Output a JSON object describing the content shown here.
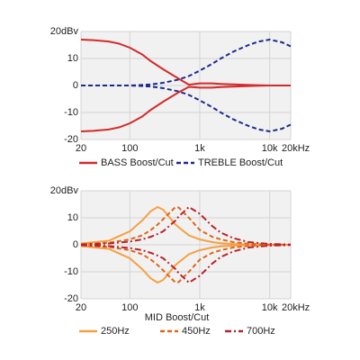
{
  "chart_data": [
    {
      "type": "line",
      "log_x": true,
      "grid": true,
      "x": [
        20,
        30,
        50,
        70,
        100,
        150,
        200,
        300,
        500,
        700,
        1000,
        1500,
        2000,
        3000,
        5000,
        7000,
        10000,
        15000,
        20000
      ],
      "xlim": [
        20,
        20000
      ],
      "xticks": [
        20,
        100,
        {
          "value": 1000,
          "label": "1k"
        },
        {
          "value": 10000,
          "label": "10k"
        },
        {
          "value": 20000,
          "label": "20kHz"
        }
      ],
      "ylim": [
        -20,
        20
      ],
      "yticks": [
        {
          "value": 20,
          "label": "20dBv"
        },
        10,
        0,
        -10,
        -20
      ],
      "series": [
        {
          "name": "BASS Boost/Cut",
          "color": "#d42a2a",
          "dash": "solid",
          "lines": [
            [
              17,
              16.8,
              16.3,
              15.5,
              14,
              11.5,
              9,
              6,
              2.5,
              0.3,
              0.8,
              0.8,
              0.6,
              0.4,
              0.2,
              0.1,
              0,
              0,
              0
            ],
            [
              -17,
              -16.8,
              -16.3,
              -15.5,
              -14,
              -11.5,
              -9,
              -6,
              -2.5,
              -0.5,
              -0.8,
              -0.8,
              -0.6,
              -0.4,
              -0.2,
              -0.1,
              0,
              0,
              0
            ]
          ]
        },
        {
          "name": "TREBLE Boost/Cut",
          "color": "#1e2a8a",
          "dash": "dashed",
          "lines": [
            [
              0,
              0,
              0,
              0,
              0,
              0.2,
              0.4,
              1,
              2.2,
              3.5,
              5.5,
              8,
              10,
              12.5,
              15,
              16.3,
              17,
              16,
              14.5
            ],
            [
              0,
              0,
              0,
              0,
              0,
              -0.2,
              -0.4,
              -1,
              -2.2,
              -3.5,
              -5.5,
              -8,
              -10,
              -12.5,
              -15,
              -16.3,
              -17,
              -16,
              -14.5
            ]
          ]
        }
      ]
    },
    {
      "type": "line",
      "log_x": true,
      "grid": true,
      "xlabel": "MID Boost/Cut",
      "x": [
        20,
        50,
        100,
        150,
        200,
        250,
        300,
        450,
        500,
        700,
        1000,
        1500,
        2000,
        3000,
        5000,
        10000,
        20000
      ],
      "xlim": [
        20,
        20000
      ],
      "xticks": [
        20,
        100,
        {
          "value": 1000,
          "label": "1k"
        },
        {
          "value": 10000,
          "label": "10k"
        },
        {
          "value": 20000,
          "label": "20kHz"
        }
      ],
      "ylim": [
        -20,
        20
      ],
      "yticks": [
        {
          "value": 20,
          "label": "20dBv"
        },
        10,
        0,
        -10,
        -20
      ],
      "series": [
        {
          "name": "250Hz",
          "color": "#f5a040",
          "dash": "solid",
          "lines": [
            [
              0.5,
              1.5,
              5,
              9,
              12.5,
              14,
              13,
              7.5,
              6.5,
              3.5,
              2,
              1,
              0.6,
              0.3,
              0.1,
              0,
              0
            ],
            [
              -0.5,
              -1.5,
              -5,
              -9,
              -12.5,
              -14,
              -13,
              -7.5,
              -6.5,
              -3.5,
              -2,
              -1,
              -0.6,
              -0.3,
              -0.1,
              0,
              0
            ]
          ]
        },
        {
          "name": "450Hz",
          "color": "#e0661a",
          "dash": "dashed",
          "lines": [
            [
              0.2,
              0.8,
              2,
              3.5,
              5.5,
              7.5,
              9.5,
              14,
              13.8,
              10,
              5.5,
              3,
              2,
              1,
              0.4,
              0.1,
              0
            ],
            [
              -0.2,
              -0.8,
              -2,
              -3.5,
              -5.5,
              -7.5,
              -9.5,
              -14,
              -13.8,
              -10,
              -5.5,
              -3,
              -2,
              -1,
              -0.4,
              -0.1,
              0
            ]
          ]
        },
        {
          "name": "700Hz",
          "color": "#b8232a",
          "dash": "dashdot",
          "lines": [
            [
              0.1,
              0.5,
              1.2,
              2,
              3,
              4,
              5,
              9,
              10.5,
              14,
              11.5,
              7,
              4.5,
              2.5,
              1,
              0.3,
              0.1
            ],
            [
              -0.1,
              -0.5,
              -1.2,
              -2,
              -3,
              -4,
              -5,
              -9,
              -10.5,
              -14,
              -11.5,
              -7,
              -4.5,
              -2.5,
              -1,
              -0.3,
              -0.1
            ]
          ]
        }
      ]
    }
  ]
}
